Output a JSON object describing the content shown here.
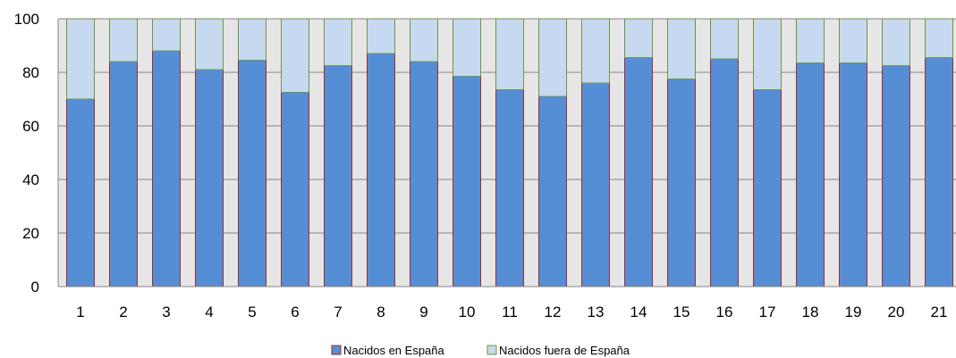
{
  "chart_data": {
    "type": "bar",
    "stacked": true,
    "categories": [
      "1",
      "2",
      "3",
      "4",
      "5",
      "6",
      "7",
      "8",
      "9",
      "10",
      "11",
      "12",
      "13",
      "14",
      "15",
      "16",
      "17",
      "18",
      "19",
      "20",
      "21"
    ],
    "series": [
      {
        "name": "Nacidos en España",
        "color": "#558ED5",
        "border": "#9B2D30",
        "values": [
          70,
          84,
          88,
          81,
          84.5,
          72.5,
          82.5,
          87,
          84,
          78.5,
          73.5,
          71,
          76,
          85.5,
          77.5,
          85,
          73.5,
          83.5,
          83.5,
          82.5,
          85.5
        ]
      },
      {
        "name": "Nacidos fuera de España",
        "color": "#C6D9F1",
        "border": "#77933C",
        "values": [
          30,
          16,
          12,
          19,
          15.5,
          27.5,
          17.5,
          13,
          16,
          21.5,
          26.5,
          29,
          24,
          14.5,
          22.5,
          15,
          26.5,
          16.5,
          16.5,
          17.5,
          14.5
        ]
      }
    ],
    "ylim": [
      0,
      100
    ],
    "yticks": [
      "0",
      "20",
      "40",
      "60",
      "80",
      "100"
    ],
    "grid": true,
    "plot_background": "#E6E6E6",
    "legend_position": "bottom-center"
  }
}
